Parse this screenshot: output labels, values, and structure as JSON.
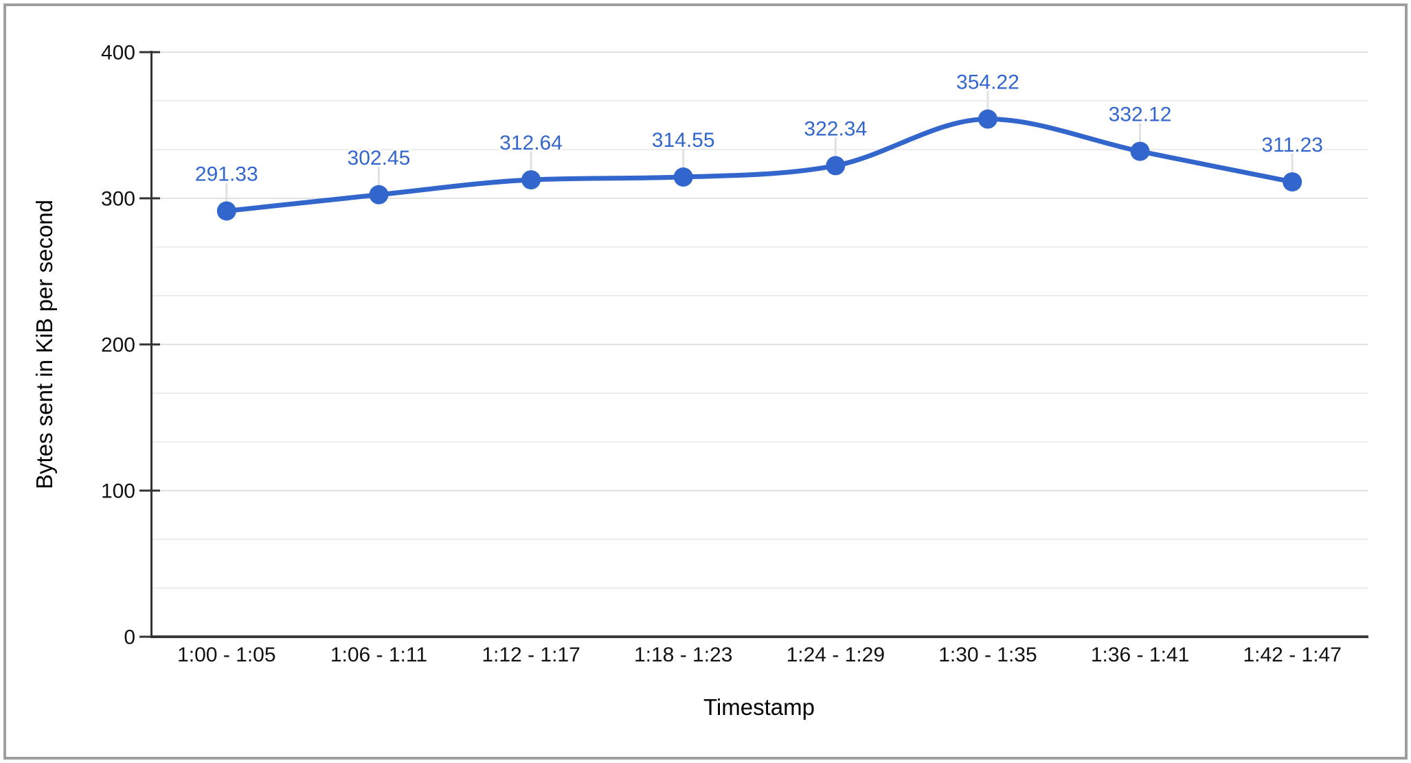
{
  "chart_data": {
    "type": "line",
    "smooth": true,
    "title": "",
    "categories": [
      "1:00 - 1:05",
      "1:06 - 1:11",
      "1:12 - 1:17",
      "1:18 - 1:23",
      "1:24 - 1:29",
      "1:30 - 1:35",
      "1:36 - 1:41",
      "1:42 - 1:47"
    ],
    "values": [
      291.33,
      302.45,
      312.64,
      314.55,
      322.34,
      354.22,
      332.12,
      311.23
    ],
    "point_labels": [
      "291.33",
      "302.45",
      "312.64",
      "314.55",
      "322.34",
      "354.22",
      "332.12",
      "311.23"
    ],
    "xlabel": "Timestamp",
    "ylabel": "Bytes sent in KiB per second",
    "ylim": [
      0,
      400
    ],
    "y_ticks": [
      0,
      100,
      200,
      300,
      400
    ],
    "y_tick_labels": [
      "0",
      "100",
      "200",
      "300",
      "400"
    ],
    "minor_gridlines_per_major": 2,
    "grid": true,
    "legend": "none",
    "data_labels_shown": true
  },
  "colors": {
    "series": "#3366CC",
    "data_label": "#3366CC",
    "gridline_major": "#e2e2e2",
    "gridline_minor": "#ececec",
    "axis_line": "#333333",
    "baseline": "#3b3b3b",
    "tick_mark": "#333333",
    "tick_label": "#111111",
    "axis_title": "#000000",
    "label_leader": "#e0e0e0",
    "canvas_border": "#9e9e9e",
    "background": "#ffffff"
  }
}
